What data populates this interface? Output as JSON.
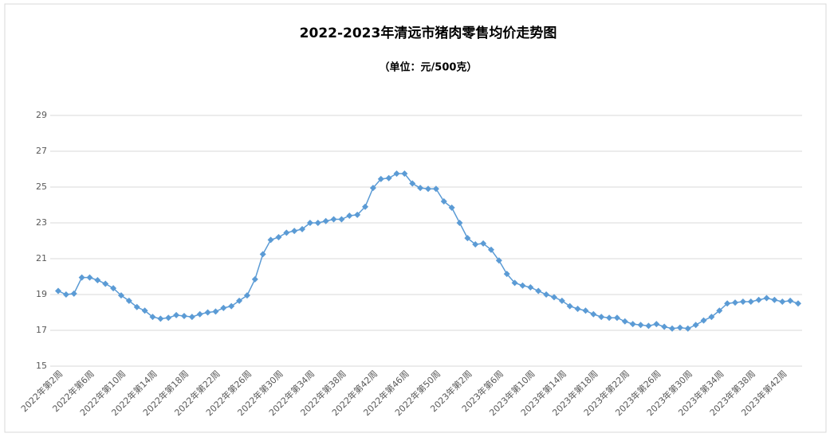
{
  "chart_data": {
    "type": "line",
    "title": "2022-2023年清远市猪肉零售均价走势图",
    "subtitle": "（单位：元/500克）",
    "categories": [
      "2022年第2周",
      null,
      null,
      null,
      "2022年第6周",
      null,
      null,
      null,
      "2022年第10周",
      null,
      null,
      null,
      "2022年第14周",
      null,
      null,
      null,
      "2022年第18周",
      null,
      null,
      null,
      "2022年第22周",
      null,
      null,
      null,
      "2022年第26周",
      null,
      null,
      null,
      "2022年第30周",
      null,
      null,
      null,
      "2022年第34周",
      null,
      null,
      null,
      "2022年第38周",
      null,
      null,
      null,
      "2022年第42周",
      null,
      null,
      null,
      "2022年第46周",
      null,
      null,
      null,
      "2022年第50周",
      null,
      null,
      null,
      "2023年第2周",
      null,
      null,
      null,
      "2023年第6周",
      null,
      null,
      null,
      "2023年第10周",
      null,
      null,
      null,
      "2023年第14周",
      null,
      null,
      null,
      "2023年第18周",
      null,
      null,
      null,
      "2023年第22周",
      null,
      null,
      null,
      "2023年第26周",
      null,
      null,
      null,
      "2023年第30周",
      null,
      null,
      null,
      "2023年第34周",
      null,
      null,
      null,
      "2023年第38周",
      null,
      null,
      null,
      "2023年第42周",
      null,
      null
    ],
    "series": [
      {
        "color": "#5b9bd5",
        "values": [
          19.2,
          19.0,
          19.05,
          19.95,
          19.95,
          19.8,
          19.6,
          19.35,
          18.95,
          18.65,
          18.3,
          18.1,
          17.75,
          17.65,
          17.7,
          17.85,
          17.8,
          17.75,
          17.9,
          18.0,
          18.05,
          18.25,
          18.35,
          18.65,
          18.95,
          19.85,
          21.25,
          22.05,
          22.2,
          22.45,
          22.55,
          22.65,
          23.0,
          23.0,
          23.1,
          23.2,
          23.2,
          23.4,
          23.45,
          23.9,
          24.95,
          25.45,
          25.5,
          25.75,
          25.75,
          25.2,
          24.95,
          24.9,
          24.9,
          24.2,
          23.85,
          23.0,
          22.15,
          21.8,
          21.85,
          21.5,
          20.9,
          20.15,
          19.65,
          19.5,
          19.4,
          19.2,
          19.0,
          18.85,
          18.65,
          18.35,
          18.2,
          18.1,
          17.9,
          17.75,
          17.7,
          17.7,
          17.5,
          17.35,
          17.3,
          17.25,
          17.35,
          17.2,
          17.1,
          17.15,
          17.1,
          17.3,
          17.55,
          17.75,
          18.1,
          18.5,
          18.55,
          18.6,
          18.6,
          18.7,
          18.8,
          18.7,
          18.6,
          18.65,
          18.5
        ]
      }
    ],
    "ylim": [
      15,
      29
    ],
    "yticks": [
      15,
      17,
      19,
      21,
      23,
      25,
      27,
      29
    ],
    "grid": true
  }
}
